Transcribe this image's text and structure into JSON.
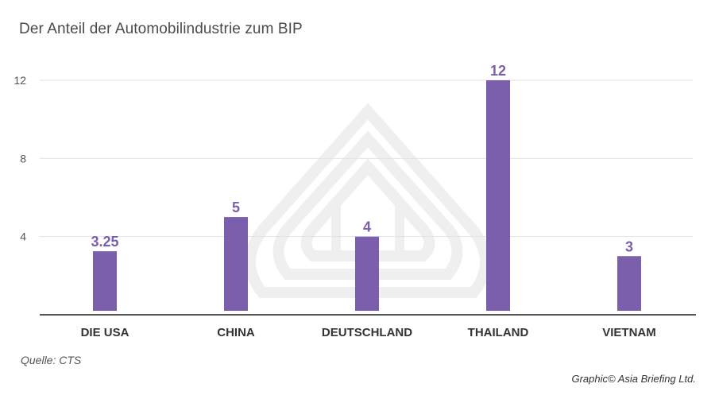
{
  "title": "Der Anteil der Automobilindustrie zum BIP",
  "source": "Quelle: CTS",
  "credit": "Graphic© Asia Briefing Ltd.",
  "colors": {
    "bar": "#7b5fac",
    "value_label": "#7b5fac",
    "grid": "#e2e2e2",
    "axis": "#555555",
    "tick_label": "#555555",
    "category_label": "#333333",
    "watermark": "#efefef"
  },
  "watermark_icon": "asia-briefing-logo-watermark",
  "chart_data": {
    "type": "bar",
    "title": "Der Anteil der Automobilindustrie zum BIP",
    "categories": [
      "DIE USA",
      "CHINA",
      "DEUTSCHLAND",
      "THAILAND",
      "VIETNAM"
    ],
    "values": [
      3.25,
      5,
      4,
      12,
      3
    ],
    "value_labels": [
      "3.25",
      "5",
      "4",
      "12",
      "3"
    ],
    "yticks": [
      4,
      8,
      12
    ],
    "ytick_labels": [
      "4",
      "8",
      "12"
    ],
    "ylim": [
      0,
      12
    ],
    "grid": true,
    "legend": "none"
  }
}
